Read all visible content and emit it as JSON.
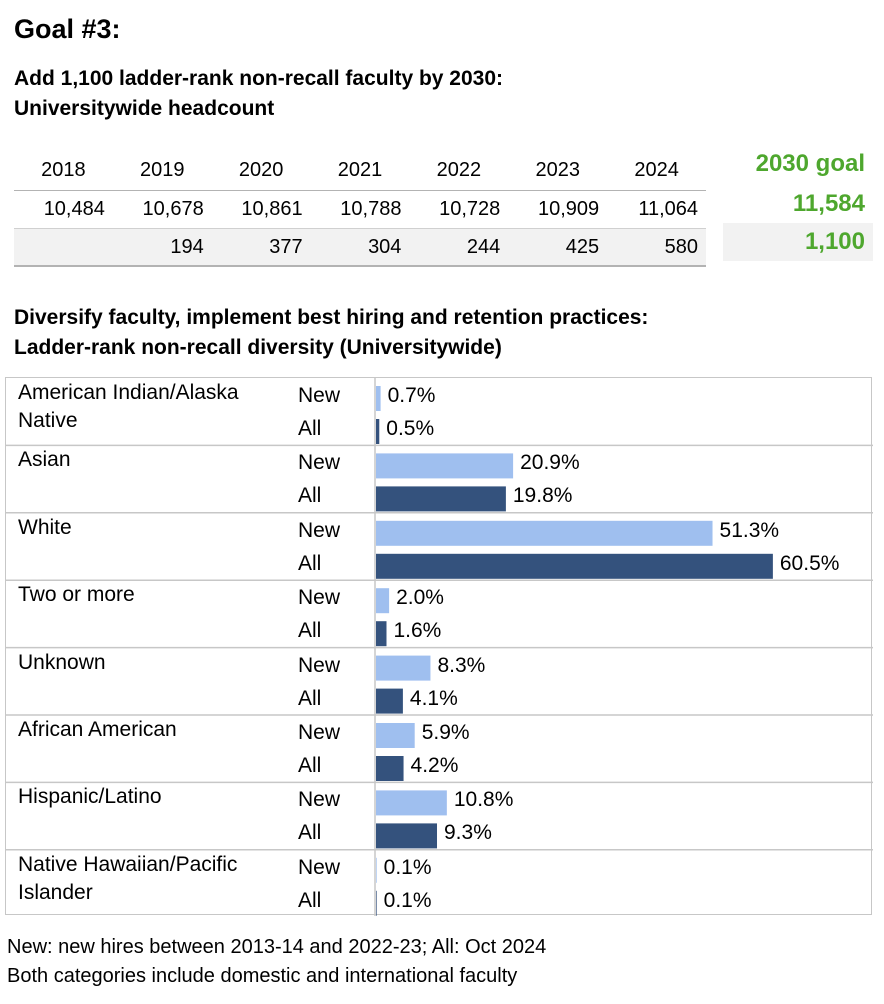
{
  "goal_title": "Goal #3:",
  "headcount_title_1": "Add 1,100 ladder-rank non-recall faculty by 2030:",
  "headcount_title_2": "Universitywide headcount",
  "headcount": {
    "years": [
      "2018",
      "2019",
      "2020",
      "2021",
      "2022",
      "2023",
      "2024"
    ],
    "totals": [
      "10,484",
      "10,678",
      "10,861",
      "10,788",
      "10,728",
      "10,909",
      "11,064"
    ],
    "increase": [
      "",
      "194",
      "377",
      "304",
      "244",
      "425",
      "580"
    ],
    "goal_label": "2030 goal",
    "goal_total": "11,584",
    "goal_increase": "1,100",
    "goal_color": "#4ea72e"
  },
  "diversity_title_1": "Diversify faculty, implement best hiring and retention practices:",
  "diversity_title_2": "Ladder-rank non-recall diversity (Universitywide)",
  "chart_data": {
    "type": "bar",
    "orientation": "horizontal",
    "categories": [
      "American Indian/Alaska Native",
      "Asian",
      "White",
      "Two or more",
      "Unknown",
      "African American",
      "Hispanic/Latino",
      "Native Hawaiian/Pacific Islander"
    ],
    "series": [
      {
        "name": "New",
        "color": "#9fbfef",
        "values": [
          0.7,
          20.9,
          51.3,
          2.0,
          8.3,
          5.9,
          10.8,
          0.1
        ],
        "labels": [
          "0.7%",
          "20.9%",
          "51.3%",
          "2.0%",
          "8.3%",
          "5.9%",
          "10.8%",
          "0.1%"
        ]
      },
      {
        "name": "All",
        "color": "#34527d",
        "values": [
          0.5,
          19.8,
          60.5,
          1.6,
          4.1,
          4.2,
          9.3,
          0.1
        ],
        "labels": [
          "0.5%",
          "19.8%",
          "60.5%",
          "1.6%",
          "4.1%",
          "4.2%",
          "9.3%",
          "0.1%"
        ]
      }
    ],
    "unit": "%"
  },
  "notes": [
    "New: new hires between 2013-14 and 2022-23; All: Oct 2024",
    "Both categories include domestic and international faculty"
  ]
}
